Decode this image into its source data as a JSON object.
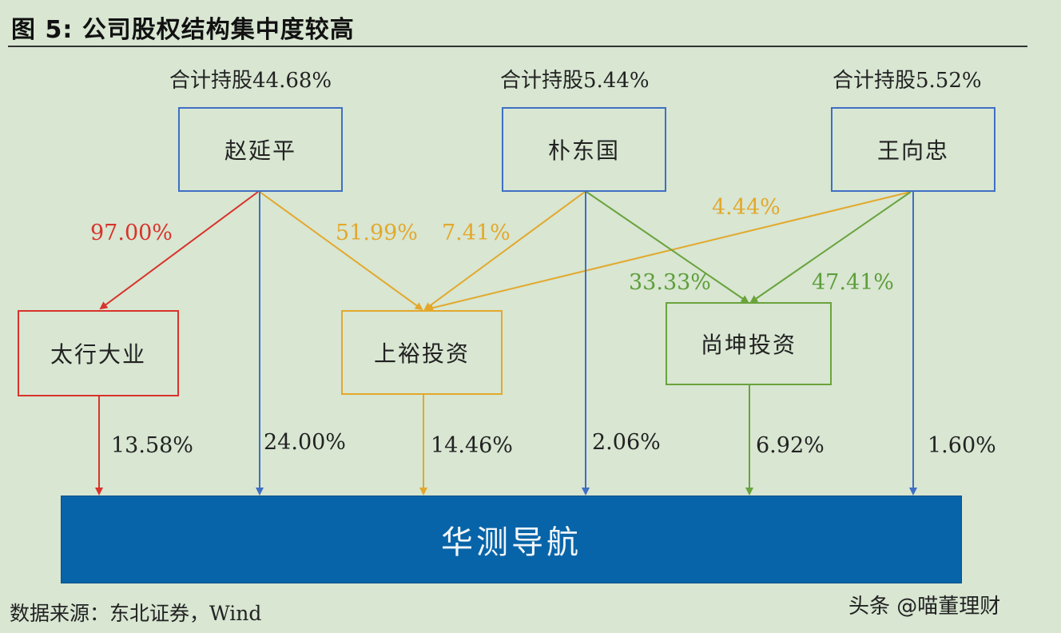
{
  "title": "图 5: 公司股权结构集中度较高",
  "holders": [
    {
      "name": "赵延平",
      "total": "合计持股44.68%"
    },
    {
      "name": "朴东国",
      "total": "合计持股5.44%"
    },
    {
      "name": "王向忠",
      "total": "合计持股5.52%"
    }
  ],
  "entities": [
    {
      "name": "太行大业"
    },
    {
      "name": "上裕投资"
    },
    {
      "name": "尚坤投资"
    }
  ],
  "company": "华测导航",
  "links": {
    "zhao_taihang": "97.00%",
    "zhao_shangyu": "51.99%",
    "pu_shangyu": "7.41%",
    "wang_shangyu": "4.44%",
    "pu_shangkun": "33.33%",
    "wang_shangkun": "47.41%",
    "taihang_company": "13.58%",
    "zhao_company": "24.00%",
    "shangyu_company": "14.46%",
    "pu_company": "2.06%",
    "shangkun_company": "6.92%",
    "wang_company": "1.60%"
  },
  "colors": {
    "blue": "#3f6fc4",
    "red": "#d8332c",
    "gold": "#e3a82b",
    "green": "#6aa33c",
    "company_fill": "#0864a8"
  },
  "source": "数据来源：东北证券，Wind",
  "watermark": "头条 @喵董理财"
}
